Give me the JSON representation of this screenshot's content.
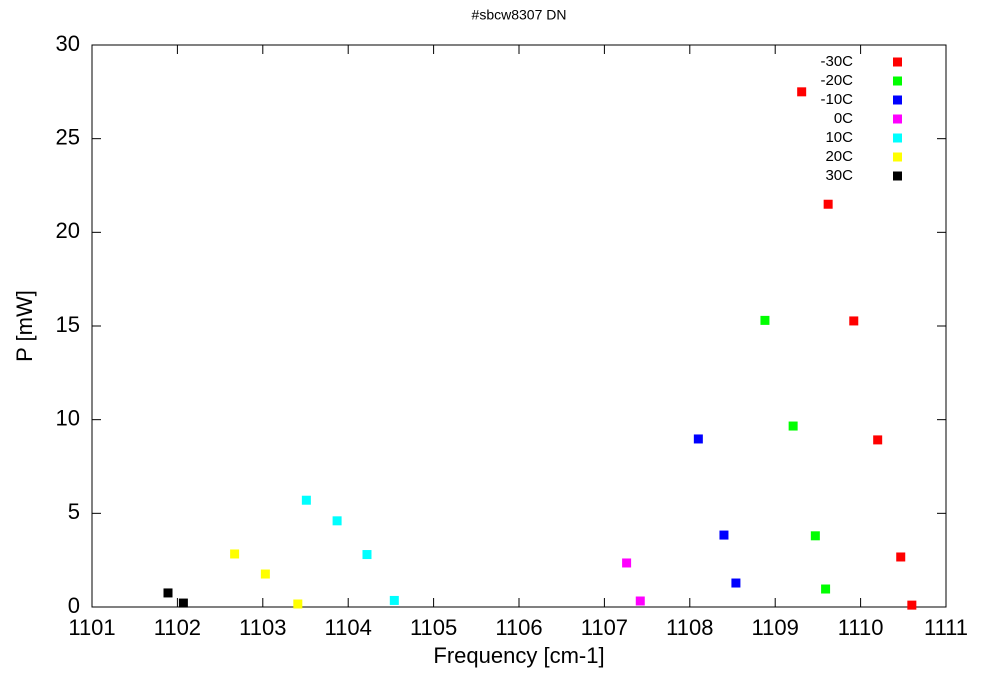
{
  "chart_data": {
    "type": "scatter",
    "title": "#sbcw8307 DN",
    "x_label": "Frequency [cm-1]",
    "y_label": "P [mW]",
    "xlim": [
      1101,
      1111
    ],
    "xticks": [
      1101,
      1102,
      1103,
      1104,
      1105,
      1106,
      1107,
      1108,
      1109,
      1110,
      1111
    ],
    "ylim": [
      0,
      30
    ],
    "yticks": [
      0,
      5,
      10,
      15,
      20,
      25,
      30
    ],
    "grid": false,
    "legend": "top-right",
    "series": [
      {
        "name": "-30C",
        "color": "#ff0000",
        "x": [
          1109.31,
          1109.62,
          1109.92,
          1110.2,
          1110.47,
          1110.6
        ],
        "values": [
          27.5,
          21.5,
          15.27,
          8.92,
          2.67,
          0.1
        ]
      },
      {
        "name": "-20C",
        "color": "#00ff00",
        "x": [
          1108.88,
          1109.21,
          1109.47,
          1109.59
        ],
        "values": [
          15.3,
          9.66,
          3.8,
          0.96
        ]
      },
      {
        "name": "-10C",
        "color": "#0000ff",
        "x": [
          1108.1,
          1108.4,
          1108.54
        ],
        "values": [
          8.97,
          3.84,
          1.28
        ]
      },
      {
        "name": "0C",
        "color": "#ff00ff",
        "x": [
          1107.26,
          1107.42
        ],
        "values": [
          2.35,
          0.32
        ]
      },
      {
        "name": "10C",
        "color": "#00ffff",
        "x": [
          1103.51,
          1103.87,
          1104.22,
          1104.54
        ],
        "values": [
          5.7,
          4.6,
          2.8,
          0.35
        ]
      },
      {
        "name": "20C",
        "color": "#ffff00",
        "x": [
          1102.67,
          1103.03,
          1103.41
        ],
        "values": [
          2.83,
          1.76,
          0.16
        ]
      },
      {
        "name": "30C",
        "color": "#000000",
        "x": [
          1101.89,
          1102.07
        ],
        "values": [
          0.75,
          0.21
        ]
      }
    ]
  }
}
